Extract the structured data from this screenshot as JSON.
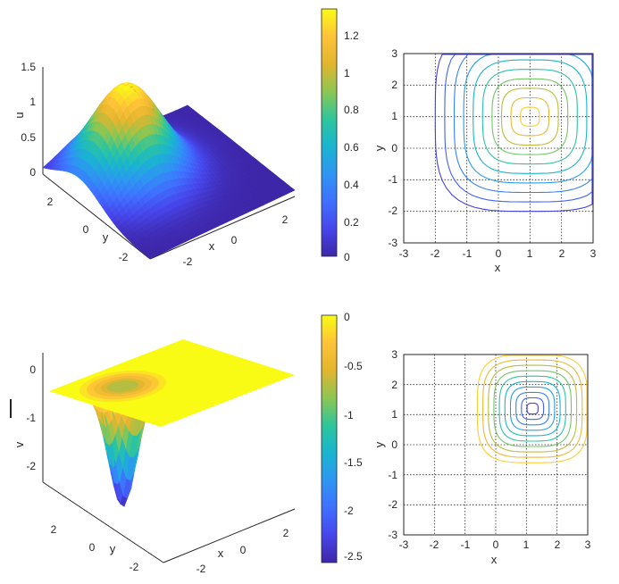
{
  "colorscale": [
    "#3e26a8",
    "#4746eb",
    "#3f70ff",
    "#2e96f2",
    "#19b5cf",
    "#2fc59c",
    "#8dc652",
    "#e2b52e",
    "#fec338",
    "#f9fb15"
  ],
  "chart_data": [
    {
      "type": "surface",
      "zlabel": "u",
      "xlabel": "x",
      "ylabel": "y",
      "xlim": [
        -3,
        3
      ],
      "ylim": [
        -3,
        3
      ],
      "zlim": [
        0,
        1.5
      ],
      "xticks": [
        "-2",
        "0",
        "2"
      ],
      "yticks": [
        "2",
        "0",
        "y",
        "-2"
      ],
      "zticks": [
        "1.5",
        "1",
        "0.5",
        "0"
      ],
      "function": "1.32*exp(-((x-1)^2+(y-1)^2)/3)",
      "peak": {
        "x": 1,
        "y": 1,
        "z": 1.32
      }
    },
    {
      "type": "colorbar",
      "range": [
        0,
        1.32
      ],
      "ticks": [
        "1.2",
        "1",
        "0.8",
        "0.6",
        "0.4",
        "0.2",
        "0"
      ],
      "tick_values": [
        1.2,
        1,
        0.8,
        0.6,
        0.4,
        0.2,
        0
      ]
    },
    {
      "type": "contour",
      "xlabel": "x",
      "ylabel": "y",
      "xlim": [
        -3,
        3
      ],
      "ylim": [
        -3,
        3
      ],
      "xticks": [
        "-3",
        "-2",
        "-1",
        "0",
        "1",
        "2",
        "3"
      ],
      "yticks": [
        "3",
        "2",
        "1",
        "0",
        "-1",
        "-2",
        "-3"
      ],
      "grid": "dotted",
      "center": {
        "x": 1,
        "y": 1
      },
      "levels": 10,
      "outer_radius": 3
    },
    {
      "type": "surface",
      "zlabel": "v",
      "xlabel": "x",
      "ylabel": "y",
      "xlim": [
        -3,
        3
      ],
      "ylim": [
        -3,
        3
      ],
      "zlim": [
        -2.5,
        0
      ],
      "xticks": [
        "-2",
        "0",
        "2"
      ],
      "yticks": [
        "2",
        "0",
        "y",
        "-2"
      ],
      "zticks": [
        "0",
        "-1",
        "-2"
      ],
      "function": "-2.55*exp(-((x-1.2)^2+(y-1.2)^2)/0.5)",
      "trough": {
        "x": 1.2,
        "y": 1.2,
        "z": -2.55
      }
    },
    {
      "type": "colorbar",
      "range": [
        -2.55,
        0
      ],
      "ticks": [
        "0",
        "-0.5",
        "-1",
        "-1.5",
        "-2",
        "-2.5"
      ],
      "tick_values": [
        0,
        -0.5,
        -1,
        -1.5,
        -2,
        -2.5
      ]
    },
    {
      "type": "contour",
      "xlabel": "x",
      "ylabel": "y",
      "xlim": [
        -3,
        3
      ],
      "ylim": [
        -3,
        3
      ],
      "xticks": [
        "-3",
        "-2",
        "-1",
        "0",
        "1",
        "2",
        "3"
      ],
      "yticks": [
        "3",
        "2",
        "1",
        "0",
        "-1",
        "-2",
        "-3"
      ],
      "grid": "dotted",
      "center": {
        "x": 1.2,
        "y": 1.2
      },
      "levels": 10,
      "outer_radius": 1.8
    }
  ]
}
